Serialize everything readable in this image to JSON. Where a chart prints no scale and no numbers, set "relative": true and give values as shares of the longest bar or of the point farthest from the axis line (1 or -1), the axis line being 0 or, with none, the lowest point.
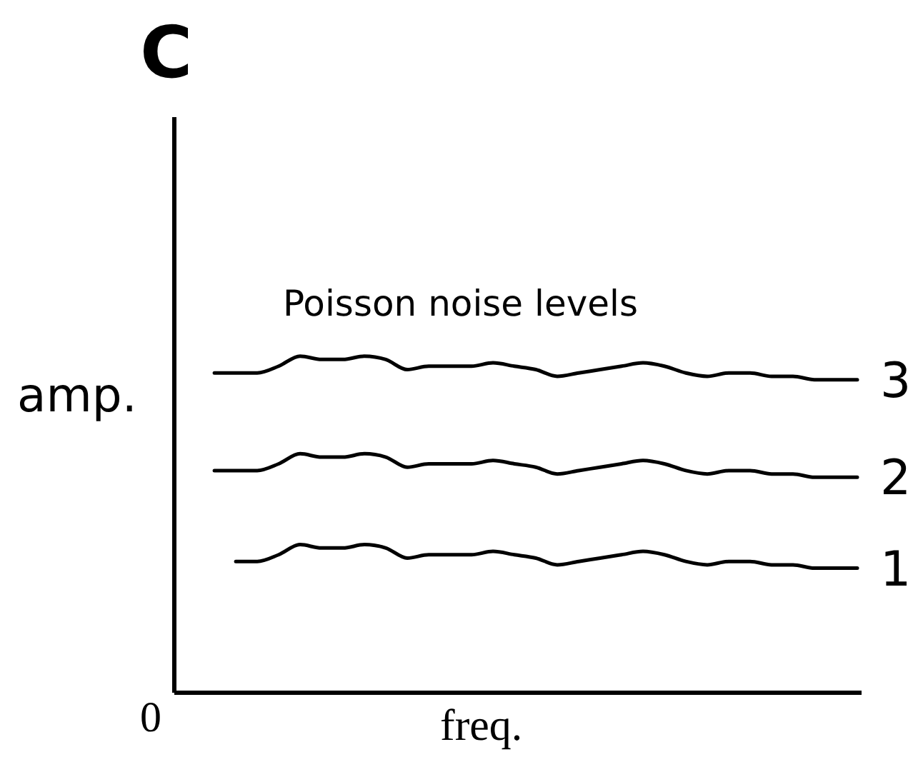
{
  "chart_data": {
    "type": "line",
    "title": "C",
    "xlabel": "freq.",
    "ylabel": "amp.",
    "relative": true,
    "grid": false,
    "legend": false,
    "marker": "none",
    "line_style": "solid",
    "annotations": [
      "Poisson noise levels",
      "0"
    ],
    "categories": [
      null,
      null,
      null,
      null,
      null,
      null,
      null,
      null,
      null,
      null,
      null,
      null,
      null,
      null,
      null,
      null,
      null,
      null,
      null,
      null,
      null,
      null,
      null,
      null,
      null,
      null,
      null,
      null,
      null,
      null,
      null
    ],
    "series": [
      {
        "name": "3",
        "color": "#000000",
        "values": [
          0.95,
          0.95,
          0.95,
          0.97,
          1.0,
          0.99,
          0.99,
          1.0,
          0.99,
          0.96,
          0.97,
          0.97,
          0.97,
          0.98,
          0.97,
          0.96,
          0.94,
          0.95,
          0.96,
          0.97,
          0.98,
          0.97,
          0.95,
          0.94,
          0.95,
          0.95,
          0.94,
          0.94,
          0.93,
          0.93,
          0.93
        ]
      },
      {
        "name": "2",
        "color": "#000000",
        "values": [
          0.66,
          0.66,
          0.66,
          0.68,
          0.71,
          0.7,
          0.7,
          0.71,
          0.7,
          0.67,
          0.68,
          0.68,
          0.68,
          0.69,
          0.68,
          0.67,
          0.65,
          0.66,
          0.67,
          0.68,
          0.69,
          0.68,
          0.66,
          0.65,
          0.66,
          0.66,
          0.65,
          0.65,
          0.64,
          0.64,
          0.64
        ]
      },
      {
        "name": "1",
        "color": "#000000",
        "values": [
          null,
          0.39,
          0.39,
          0.41,
          0.44,
          0.43,
          0.43,
          0.44,
          0.43,
          0.4,
          0.41,
          0.41,
          0.41,
          0.42,
          0.41,
          0.4,
          0.38,
          0.39,
          0.4,
          0.41,
          0.42,
          0.41,
          0.39,
          0.38,
          0.39,
          0.39,
          0.38,
          0.38,
          0.37,
          0.37,
          0.37
        ]
      }
    ]
  }
}
